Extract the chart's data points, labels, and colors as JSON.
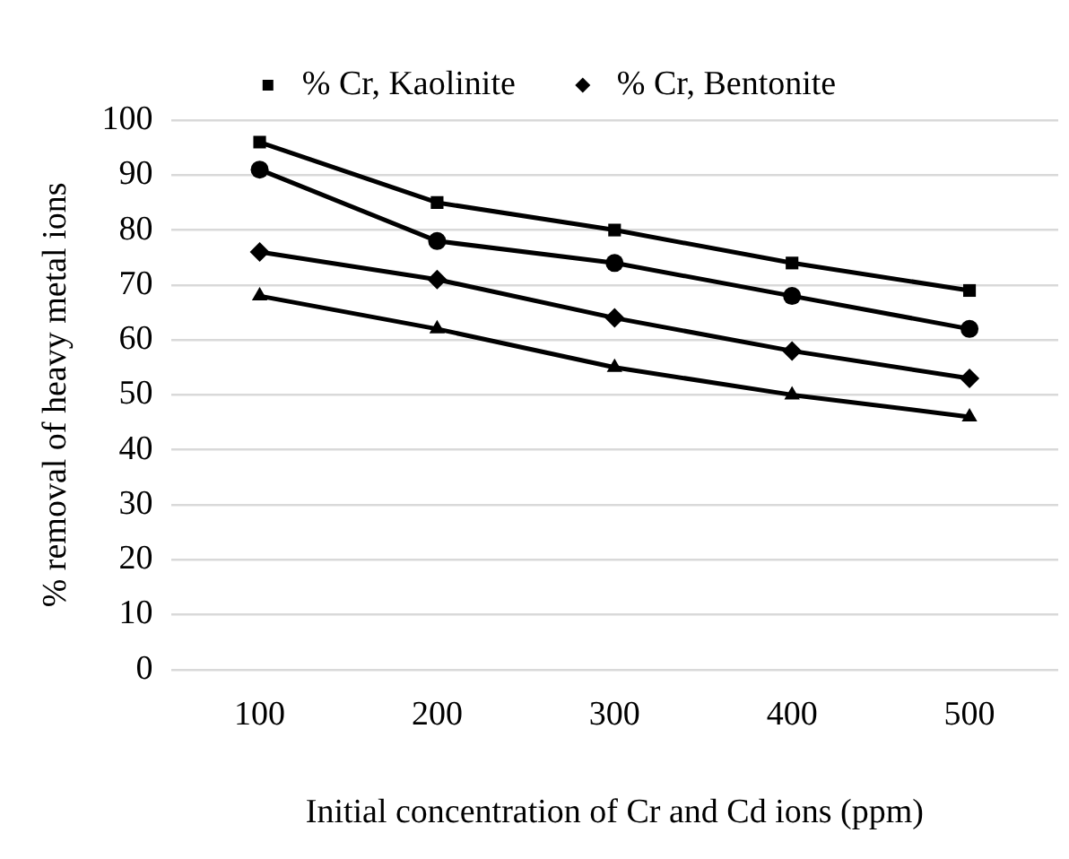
{
  "chart_data": {
    "type": "line",
    "xlabel": "Initial concentration of Cr and Cd ions (ppm)",
    "ylabel": "% removal of heavy metal ions",
    "categories": [
      "100",
      "200",
      "300",
      "400",
      "500"
    ],
    "series": [
      {
        "name": "% Cr, Kaolinite",
        "color": "#000000",
        "marker": "square",
        "values": [
          96,
          85,
          80,
          74,
          69
        ]
      },
      {
        "color": "#000000",
        "marker": "circle",
        "values": [
          91,
          78,
          74,
          68,
          62
        ]
      },
      {
        "name": "% Cr, Bentonite",
        "color": "#000000",
        "marker": "diamond",
        "values": [
          76,
          71,
          64,
          58,
          53
        ]
      },
      {
        "color": "#000000",
        "marker": "triangle",
        "values": [
          68,
          62,
          55,
          50,
          46
        ]
      }
    ],
    "ylim": [
      0,
      100
    ],
    "yticks": [
      0,
      10,
      20,
      30,
      40,
      50,
      60,
      70,
      80,
      90,
      100
    ],
    "grid": "y",
    "legend": "top",
    "line_style": "solid"
  }
}
